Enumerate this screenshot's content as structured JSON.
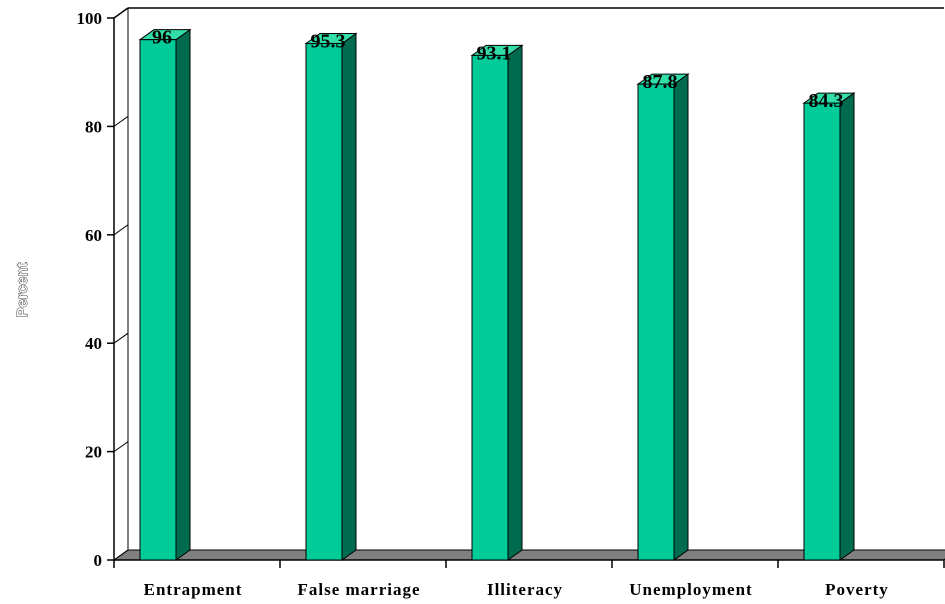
{
  "chart_data": {
    "type": "bar",
    "categories": [
      "Entrapment",
      "False marriage",
      "Illiteracy",
      "Unemployment",
      "Poverty"
    ],
    "values": [
      96,
      95.3,
      93.1,
      87.8,
      84.3
    ],
    "data_labels": [
      "96",
      "95.3",
      "93.1",
      "87.8",
      "84.3"
    ],
    "ylabel": "Percent",
    "ylim": [
      0,
      100
    ],
    "yticks": [
      0,
      20,
      40,
      60,
      80,
      100
    ],
    "grid": false,
    "legend": "none",
    "style": "3d-column",
    "colors": {
      "bar_front": "#00cc99",
      "bar_side": "#006b4f",
      "bar_top": "#33dda8",
      "floor": "#808080"
    }
  }
}
